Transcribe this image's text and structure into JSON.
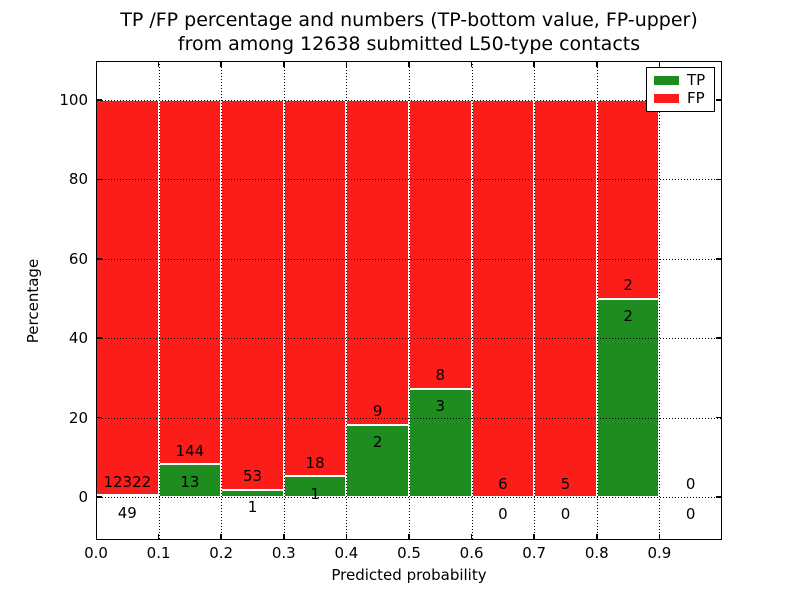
{
  "title": {
    "line1": "TP /FP percentage and numbers (TP-bottom value, FP-upper)",
    "line2": "from among 12638 submitted L50-type contacts"
  },
  "colors": {
    "tp_green": "#1e8c1e",
    "fp_red": "#fb1d1a",
    "text": "#000000",
    "background": "#ffffff",
    "grid": "#000000"
  },
  "legend": {
    "position": "upper right",
    "entries": [
      {
        "label": "TP",
        "color": "#1e8c1e"
      },
      {
        "label": "FP",
        "color": "#fb1d1a"
      }
    ]
  },
  "chart_data": {
    "type": "bar",
    "stacked": true,
    "title": "TP /FP percentage and numbers (TP-bottom value, FP-upper) from among 12638 submitted L50-type contacts",
    "xlabel": "Predicted probability",
    "ylabel": "Percentage",
    "xlim": [
      0.0,
      1.0
    ],
    "ylim": [
      -11,
      110
    ],
    "xtick_labels": [
      "0.0",
      "0.1",
      "0.2",
      "0.3",
      "0.4",
      "0.5",
      "0.6",
      "0.7",
      "0.8",
      "0.9"
    ],
    "ytick_values": [
      0,
      20,
      40,
      60,
      80,
      100
    ],
    "grid": "dotted",
    "bar_edge_color": "#ffffff",
    "total_contacts": 12638,
    "series_names": [
      "TP",
      "FP"
    ],
    "bins": [
      {
        "x_range": [
          0.0,
          0.1
        ],
        "tp_count": 49,
        "fp_count": 12322,
        "tp_pct": 0.4,
        "fp_pct": 99.6
      },
      {
        "x_range": [
          0.1,
          0.2
        ],
        "tp_count": 13,
        "fp_count": 144,
        "tp_pct": 8.28,
        "fp_pct": 91.72
      },
      {
        "x_range": [
          0.2,
          0.3
        ],
        "tp_count": 1,
        "fp_count": 53,
        "tp_pct": 1.85,
        "fp_pct": 98.15
      },
      {
        "x_range": [
          0.3,
          0.4
        ],
        "tp_count": 1,
        "fp_count": 18,
        "tp_pct": 5.26,
        "fp_pct": 94.74
      },
      {
        "x_range": [
          0.4,
          0.5
        ],
        "tp_count": 2,
        "fp_count": 9,
        "tp_pct": 18.18,
        "fp_pct": 81.82
      },
      {
        "x_range": [
          0.5,
          0.6
        ],
        "tp_count": 3,
        "fp_count": 8,
        "tp_pct": 27.27,
        "fp_pct": 72.73
      },
      {
        "x_range": [
          0.6,
          0.7
        ],
        "tp_count": 0,
        "fp_count": 6,
        "tp_pct": 0.0,
        "fp_pct": 100.0
      },
      {
        "x_range": [
          0.7,
          0.8
        ],
        "tp_count": 0,
        "fp_count": 5,
        "tp_pct": 0.0,
        "fp_pct": 100.0
      },
      {
        "x_range": [
          0.8,
          0.9
        ],
        "tp_count": 2,
        "fp_count": 2,
        "tp_pct": 50.0,
        "fp_pct": 50.0
      },
      {
        "x_range": [
          0.9,
          1.0
        ],
        "tp_count": 0,
        "fp_count": 0,
        "tp_pct": null,
        "fp_pct": null
      }
    ]
  }
}
